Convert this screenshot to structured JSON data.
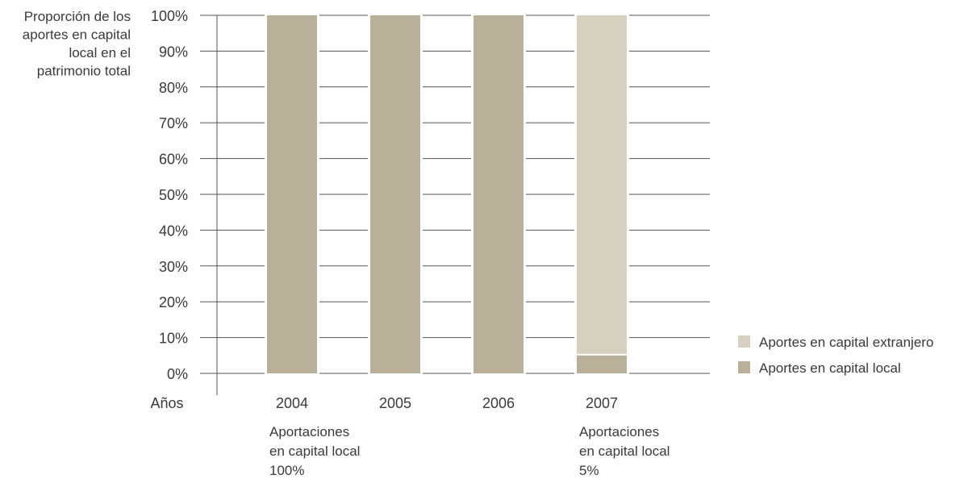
{
  "chart_data": {
    "type": "bar",
    "stacked": true,
    "ylabel": [
      "Proporción de los",
      "aportes en capital",
      "local en el",
      "patrimonio total"
    ],
    "xlabel": "Años",
    "categories": [
      "2004",
      "2005",
      "2006",
      "2007"
    ],
    "ylim": [
      0,
      100
    ],
    "yticks": [
      0,
      10,
      20,
      30,
      40,
      50,
      60,
      70,
      80,
      90,
      100
    ],
    "ytick_suffix": "%",
    "grid": true,
    "series": [
      {
        "name": "Aportes en capital local",
        "color": "#b8b098",
        "values": [
          100,
          100,
          100,
          5
        ]
      },
      {
        "name": "Aportes en capital extranjero",
        "color": "#d6d0be",
        "values": [
          0,
          0,
          0,
          95
        ]
      }
    ],
    "legend_position": "bottom-right",
    "annotations": [
      {
        "category": "2004",
        "lines": [
          "Aportaciones",
          "en capital local",
          "100%"
        ]
      },
      {
        "category": "2007",
        "lines": [
          "Aportaciones",
          "en capital local",
          "5%"
        ]
      }
    ]
  }
}
